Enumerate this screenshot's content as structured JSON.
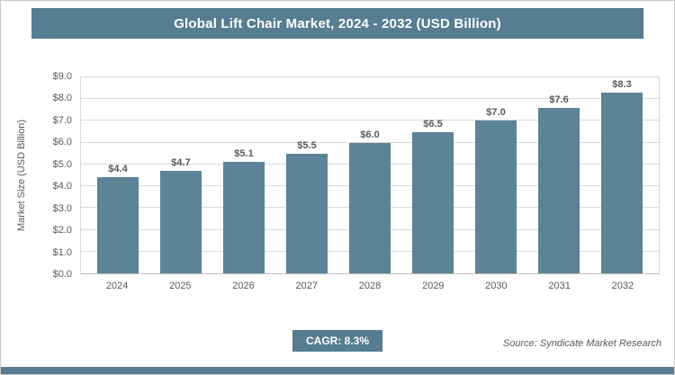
{
  "header": {
    "title": "Global Lift Chair Market, 2024 - 2032 (USD Billion)"
  },
  "chart_data": {
    "type": "bar",
    "title": "Global Lift Chair Market, 2024 - 2032 (USD Billion)",
    "categories": [
      "2024",
      "2025",
      "2026",
      "2027",
      "2028",
      "2029",
      "2030",
      "2031",
      "2032"
    ],
    "values": [
      4.4,
      4.7,
      5.1,
      5.5,
      6.0,
      6.5,
      7.0,
      7.6,
      8.3
    ],
    "bar_labels": [
      "$4.4",
      "$4.7",
      "$5.1",
      "$5.5",
      "$6.0",
      "$6.5",
      "$7.0",
      "$7.6",
      "$8.3"
    ],
    "xlabel": "",
    "ylabel": "Market Size (USD Billion)",
    "ylim": [
      0,
      9
    ],
    "ytick_step": 1.0,
    "yticks": [
      "$0.0",
      "$1.0",
      "$2.0",
      "$3.0",
      "$4.0",
      "$5.0",
      "$6.0",
      "$7.0",
      "$8.0",
      "$9.0"
    ],
    "grid": true,
    "legend_position": "none"
  },
  "footer": {
    "cagr": "CAGR: 8.3%",
    "source": "Source: Syndicate Market Research"
  },
  "colors": {
    "accent": "#567D92",
    "bar": "#5C8396",
    "gridline": "#D9D9D9",
    "axis_text": "#595959"
  }
}
